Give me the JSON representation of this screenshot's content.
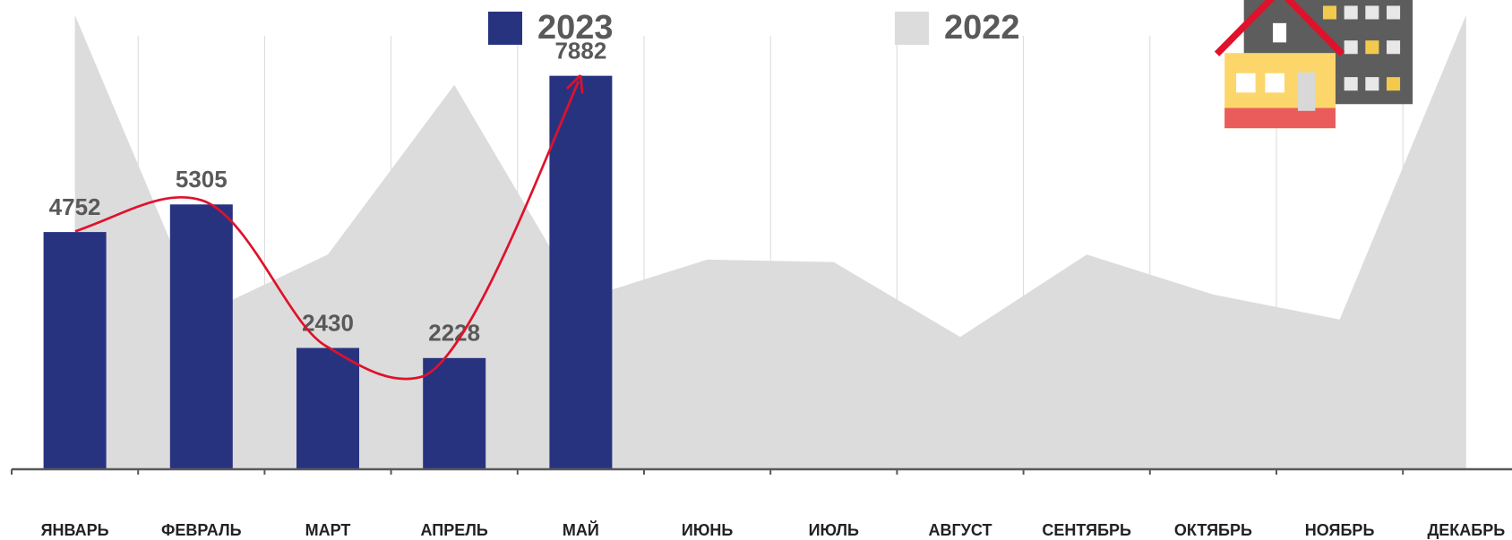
{
  "chart_data": {
    "type": "bar_area",
    "categories": [
      "ЯНВАРЬ",
      "ФЕВРАЛЬ",
      "МАРТ",
      "АПРЕЛЬ",
      "МАЙ",
      "ИЮНЬ",
      "ИЮЛЬ",
      "АВГУСТ",
      "СЕНТЯБРЬ",
      "ОКТЯБРЬ",
      "НОЯБРЬ",
      "ДЕКАБРЬ"
    ],
    "series": [
      {
        "name": "2023",
        "kind": "bar",
        "color": "#283380",
        "values": [
          4752,
          5305,
          2430,
          2228,
          7882,
          null,
          null,
          null,
          null,
          null,
          null,
          null
        ]
      },
      {
        "name": "2022",
        "kind": "area",
        "color": "#dcdcdc",
        "values": [
          9100,
          3100,
          4300,
          7700,
          3400,
          4200,
          4150,
          2650,
          4300,
          3500,
          3000,
          9100
        ]
      }
    ],
    "ylim": [
      0,
      9400
    ]
  }
}
